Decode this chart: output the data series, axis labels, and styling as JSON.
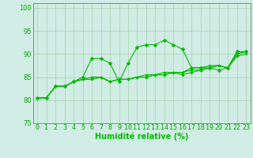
{
  "x": [
    0,
    1,
    2,
    3,
    4,
    5,
    6,
    7,
    8,
    9,
    10,
    11,
    12,
    13,
    14,
    15,
    16,
    17,
    18,
    19,
    20,
    21,
    22,
    23
  ],
  "line1": [
    80.5,
    80.5,
    83,
    83,
    84,
    85,
    89,
    89,
    88,
    84,
    88,
    91.5,
    92,
    92,
    93,
    92,
    91,
    87,
    87,
    87,
    86.5,
    87,
    90.5,
    90.5
  ],
  "line2": [
    80.5,
    80.5,
    83,
    83,
    84,
    84.5,
    85,
    85,
    84,
    84.5,
    84.5,
    85,
    85,
    85.5,
    85.5,
    86,
    86,
    87,
    87,
    87.5,
    87.5,
    87,
    90,
    90.5
  ],
  "line3": [
    80.5,
    80.5,
    83,
    83,
    84,
    84.5,
    84.5,
    85,
    84,
    84.5,
    84.5,
    85,
    85,
    85.5,
    85.5,
    86,
    85.5,
    86,
    86.5,
    87,
    87.5,
    87,
    89.5,
    90
  ],
  "line4": [
    80.5,
    80.5,
    83,
    83,
    84,
    84.5,
    84.5,
    85,
    84,
    84.5,
    84.5,
    85,
    85.5,
    85.5,
    86,
    86,
    86,
    86.5,
    86.5,
    87,
    87.5,
    87,
    90,
    90.5
  ],
  "line_color": "#00bb00",
  "bg_color": "#d0ece4",
  "grid_color": "#99cc99",
  "ylim": [
    75,
    101
  ],
  "yticks": [
    75,
    80,
    85,
    90,
    95,
    100
  ],
  "xlim": [
    -0.5,
    23.5
  ],
  "xlabel": "Humidité relative (%)",
  "xlabel_fontsize": 7,
  "tick_fontsize": 6,
  "figsize": [
    3.2,
    2.0
  ],
  "dpi": 100
}
